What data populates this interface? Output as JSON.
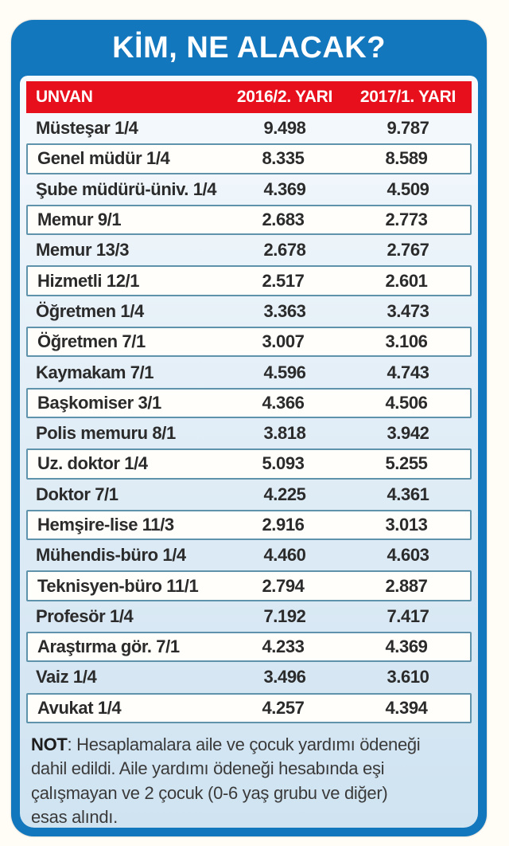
{
  "title": "KİM, NE ALACAK?",
  "table": {
    "headers": [
      "UNVAN",
      "2016/2. YARI",
      "2017/1. YARI"
    ],
    "rows": [
      {
        "unvan": "Müsteşar 1/4",
        "h2_2016": "9.498",
        "h1_2017": "9.787"
      },
      {
        "unvan": "Genel müdür 1/4",
        "h2_2016": "8.335",
        "h1_2017": "8.589"
      },
      {
        "unvan": "Şube müdürü-üniv. 1/4",
        "h2_2016": "4.369",
        "h1_2017": "4.509"
      },
      {
        "unvan": "Memur 9/1",
        "h2_2016": "2.683",
        "h1_2017": "2.773"
      },
      {
        "unvan": "Memur 13/3",
        "h2_2016": "2.678",
        "h1_2017": "2.767"
      },
      {
        "unvan": "Hizmetli 12/1",
        "h2_2016": "2.517",
        "h1_2017": "2.601"
      },
      {
        "unvan": "Öğretmen 1/4",
        "h2_2016": "3.363",
        "h1_2017": "3.473"
      },
      {
        "unvan": "Öğretmen 7/1",
        "h2_2016": "3.007",
        "h1_2017": "3.106"
      },
      {
        "unvan": "Kaymakam 7/1",
        "h2_2016": "4.596",
        "h1_2017": "4.743"
      },
      {
        "unvan": "Başkomiser 3/1",
        "h2_2016": "4.366",
        "h1_2017": "4.506"
      },
      {
        "unvan": "Polis memuru 8/1",
        "h2_2016": "3.818",
        "h1_2017": "3.942"
      },
      {
        "unvan": "Uz. doktor 1/4",
        "h2_2016": "5.093",
        "h1_2017": "5.255"
      },
      {
        "unvan": "Doktor 7/1",
        "h2_2016": "4.225",
        "h1_2017": "4.361"
      },
      {
        "unvan": "Hemşire-lise 11/3",
        "h2_2016": "2.916",
        "h1_2017": "3.013"
      },
      {
        "unvan": "Mühendis-büro 1/4",
        "h2_2016": "4.460",
        "h1_2017": "4.603"
      },
      {
        "unvan": "Teknisyen-büro 11/1",
        "h2_2016": "2.794",
        "h1_2017": "2.887"
      },
      {
        "unvan": "Profesör 1/4",
        "h2_2016": "7.192",
        "h1_2017": "7.417"
      },
      {
        "unvan": "Araştırma gör. 7/1",
        "h2_2016": "4.233",
        "h1_2017": "4.369"
      },
      {
        "unvan": "Vaiz 1/4",
        "h2_2016": "3.496",
        "h1_2017": "3.610"
      },
      {
        "unvan": "Avukat 1/4",
        "h2_2016": "4.257",
        "h1_2017": "4.394"
      }
    ]
  },
  "note": {
    "label": "NOT",
    "text": ": Hesaplamalara aile ve çocuk yardımı ödeneği dahil edildi. Aile yardımı ödeneği hesabında eşi çalışmayan ve 2 çocuk (0-6 yaş grubu ve diğer) esas alındı."
  },
  "colors": {
    "card_blue": "#1377BD",
    "header_red": "#E60F1B",
    "row_box_border": "#5E93AB",
    "panel_light_blue": "#CFE3F1"
  }
}
